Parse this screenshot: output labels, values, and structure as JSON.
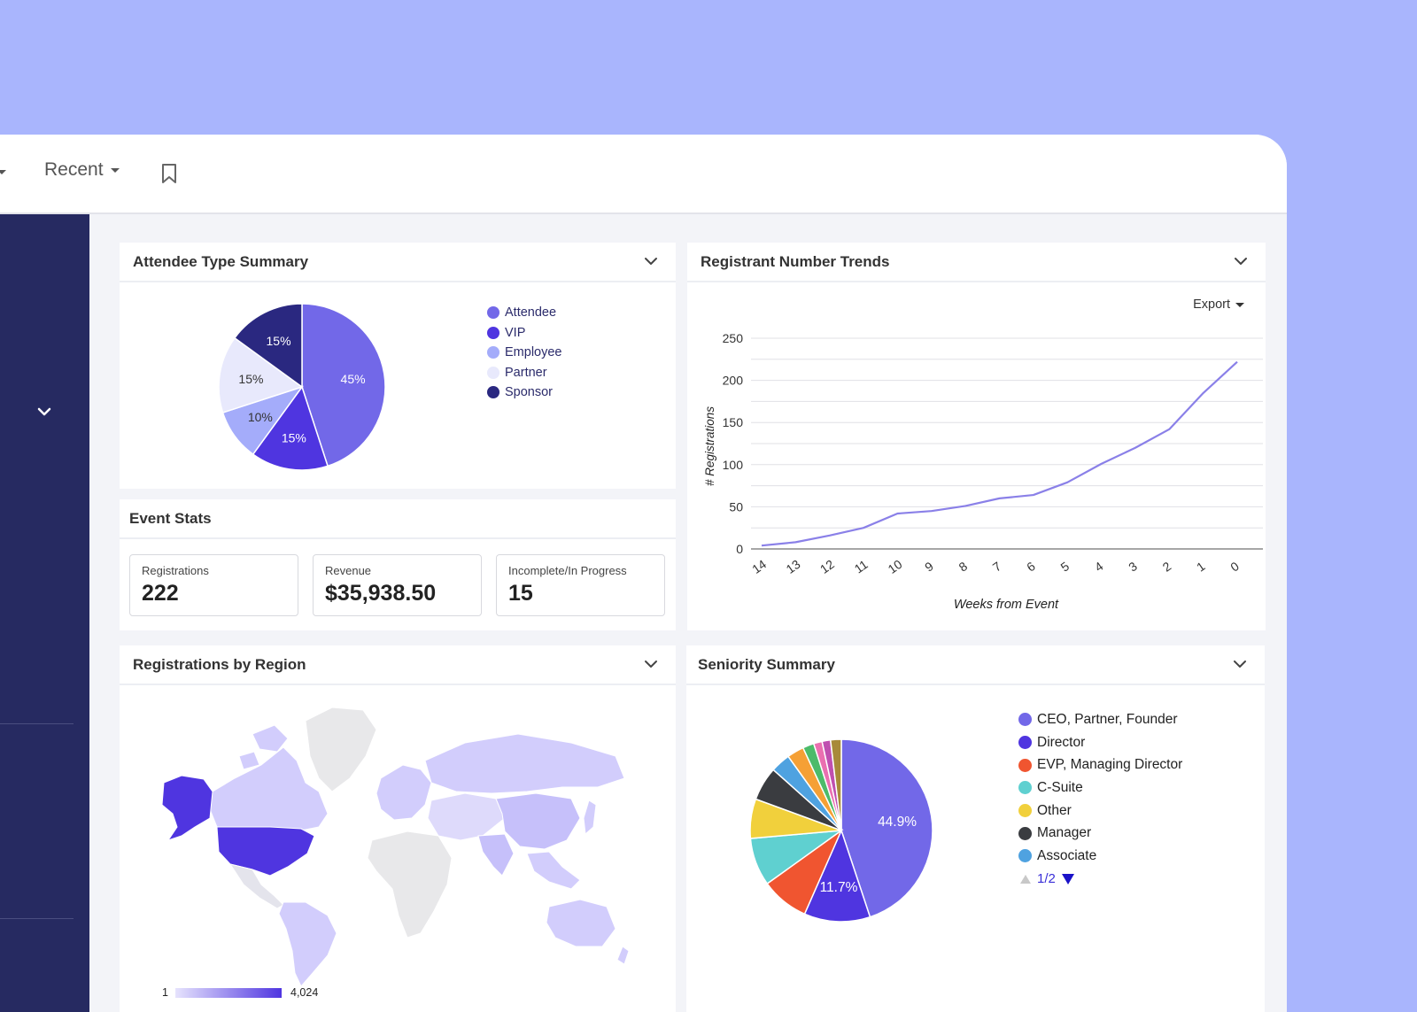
{
  "topbar": {
    "recent_label": "Recent"
  },
  "colors": {
    "background": "#a9b5fd",
    "sidebar": "#262a61",
    "attendee": "#7268e8",
    "vip": "#4f35e0",
    "employee": "#a4acfa",
    "partner": "#e8e9fc",
    "sponsor": "#2a2880"
  },
  "attendee_panel": {
    "title": "Attendee Type Summary",
    "legend": [
      {
        "label": "Attendee",
        "color": "#7268e8"
      },
      {
        "label": "VIP",
        "color": "#4f35e0"
      },
      {
        "label": "Employee",
        "color": "#a4acfa"
      },
      {
        "label": "Partner",
        "color": "#e8e9fc"
      },
      {
        "label": "Sponsor",
        "color": "#2a2880"
      }
    ]
  },
  "event_stats": {
    "title": "Event Stats",
    "stats": [
      {
        "label": "Registrations",
        "value": "222"
      },
      {
        "label": "Revenue",
        "value": "$35,938.50"
      },
      {
        "label": "Incomplete/In Progress",
        "value": "15"
      }
    ]
  },
  "trend_panel": {
    "title": "Registrant Number Trends",
    "export_label": "Export"
  },
  "region_panel": {
    "title": "Registrations by Region",
    "scale_min": "1",
    "scale_max": "4,024"
  },
  "seniority_panel": {
    "title": "Seniority Summary",
    "legend": [
      {
        "label": "CEO, Partner, Founder",
        "color": "#7268e8"
      },
      {
        "label": "Director",
        "color": "#4f35e0"
      },
      {
        "label": "EVP, Managing Director",
        "color": "#f05530"
      },
      {
        "label": "C-Suite",
        "color": "#5fd0d0"
      },
      {
        "label": "Other",
        "color": "#f1d03c"
      },
      {
        "label": "Manager",
        "color": "#3a3c40"
      },
      {
        "label": "Associate",
        "color": "#4fa2e0"
      }
    ],
    "pager": "1/2"
  },
  "chart_data": [
    {
      "type": "pie",
      "title": "Attendee Type Summary",
      "categories": [
        "Attendee",
        "VIP",
        "Employee",
        "Partner",
        "Sponsor"
      ],
      "values": [
        45,
        15,
        10,
        15,
        15
      ],
      "labels": [
        "45%",
        "15%",
        "10%",
        "15%",
        "15%"
      ],
      "colors": [
        "#7268e8",
        "#4f35e0",
        "#a4acfa",
        "#e8e9fc",
        "#2a2880"
      ],
      "label_colors": [
        "#ffffff",
        "#ffffff",
        "#333333",
        "#333333",
        "#ffffff"
      ],
      "legend": "right"
    },
    {
      "type": "line",
      "title": "Registrant Number Trends",
      "xlabel": "Weeks from Event",
      "ylabel": "# Registrations",
      "x": [
        "14",
        "13",
        "12",
        "11",
        "10",
        "9",
        "8",
        "7",
        "6",
        "5",
        "4",
        "3",
        "2",
        "1",
        "0"
      ],
      "values": [
        4,
        8,
        16,
        25,
        42,
        45,
        51,
        60,
        64,
        79,
        101,
        120,
        142,
        185,
        222
      ],
      "ylim": [
        0,
        250
      ],
      "yticks": [
        0,
        50,
        100,
        150,
        200,
        250
      ],
      "grid": true,
      "color": "#8a80e8"
    },
    {
      "type": "pie",
      "title": "Seniority Summary",
      "categories": [
        "CEO, Partner, Founder",
        "Director",
        "EVP, Managing Director",
        "C-Suite",
        "Other",
        "Manager",
        "Associate"
      ],
      "values": [
        44.9,
        11.7,
        8.5,
        8.5,
        7.0,
        6.0,
        3.5,
        3.0,
        2.0,
        1.5,
        1.5,
        1.9
      ],
      "labels": [
        "44.9%",
        "11.7%",
        "",
        "",
        "",
        "",
        "",
        "",
        "",
        "",
        "",
        ""
      ],
      "colors": [
        "#7268e8",
        "#4f35e0",
        "#f05530",
        "#5fd0d0",
        "#f1d03c",
        "#3a3c40",
        "#4fa2e0",
        "#f5a035",
        "#4cbb6a",
        "#ea6fb0",
        "#c04fb0",
        "#a88a3a"
      ],
      "legend": "right"
    }
  ]
}
